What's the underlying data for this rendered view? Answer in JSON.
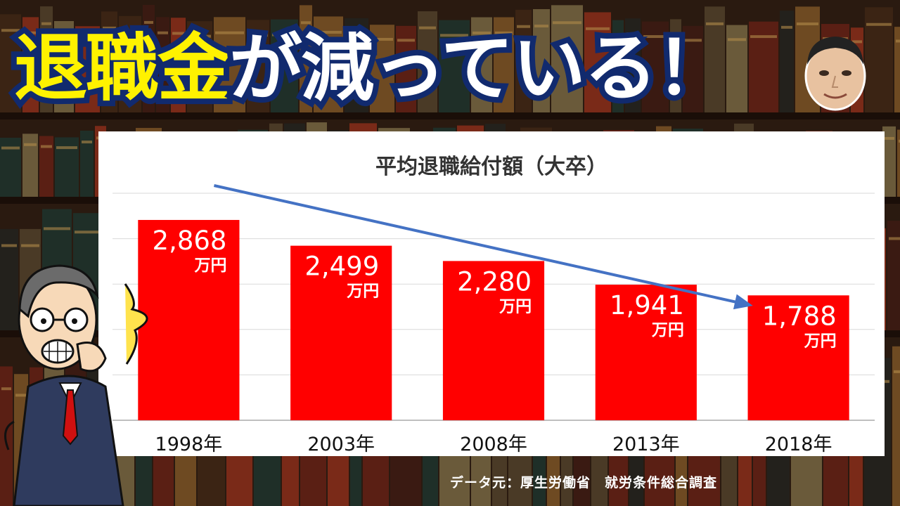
{
  "headline": {
    "part1": "退職金",
    "part2": "が減っている！",
    "color_highlight": "#fff200",
    "color_main": "#ffffff",
    "color_outline": "#112a6e"
  },
  "source_note": "データ元：厚生労働省　就労条件総合調査",
  "chart_data": {
    "type": "bar",
    "title": "平均退職給付額（大卒）",
    "categories": [
      "1998年",
      "2003年",
      "2008年",
      "2013年",
      "2018年"
    ],
    "values": [
      2868,
      2499,
      2280,
      1941,
      1788
    ],
    "value_labels": [
      "2,868",
      "2,499",
      "2,280",
      "1,941",
      "1,788"
    ],
    "unit": "万円",
    "ylim": [
      0,
      3250
    ],
    "grid": true,
    "bar_color": "#ff0000",
    "trend_arrow": true,
    "trend_color": "#4472c4"
  }
}
